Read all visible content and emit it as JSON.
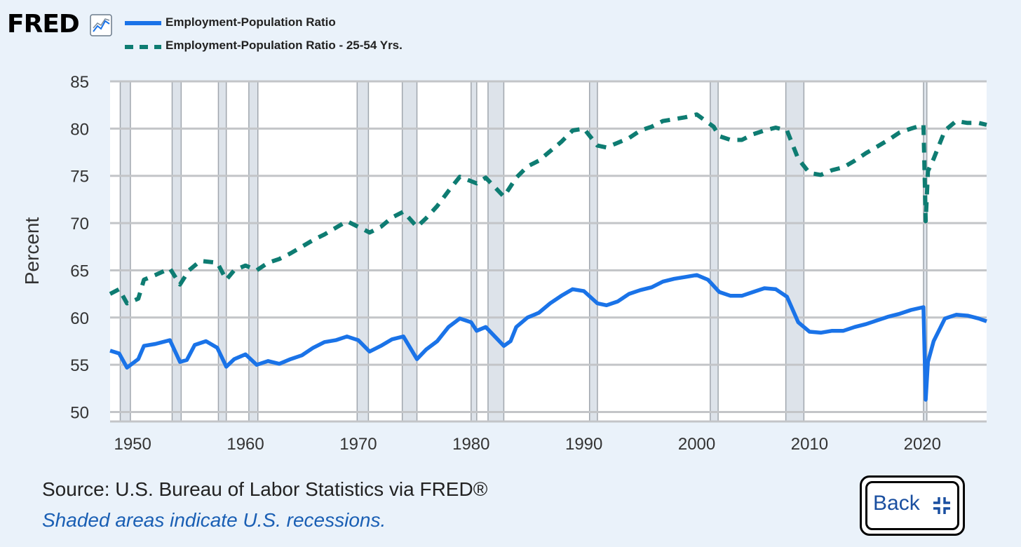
{
  "header": {
    "logo": "FRED",
    "logo_icon": "line-chart-icon"
  },
  "legend": [
    {
      "label": "Employment-Population Ratio",
      "style": "solid",
      "color": "#1a73e8"
    },
    {
      "label": "Employment-Population Ratio - 25-54 Yrs.",
      "style": "dashed",
      "color": "#0e7c72"
    }
  ],
  "footer": {
    "source": "Source: U.S. Bureau of Labor Statistics via FRED®",
    "note": "Shaded areas indicate U.S. recessions."
  },
  "back_button": {
    "label": "Back",
    "icon": "collapse-icon"
  },
  "chart_data": {
    "type": "line",
    "ylabel": "Percent",
    "xlim": [
      1948.0,
      2025.7
    ],
    "ylim": [
      49,
      85
    ],
    "y_ticks": [
      50,
      55,
      60,
      65,
      70,
      75,
      80,
      85
    ],
    "x_ticks": [
      1950,
      1960,
      1970,
      1980,
      1990,
      2000,
      2010,
      2020
    ],
    "grid": true,
    "recessions": [
      [
        1948.9,
        1949.8
      ],
      [
        1953.5,
        1954.3
      ],
      [
        1957.6,
        1958.3
      ],
      [
        1960.3,
        1961.1
      ],
      [
        1969.9,
        1970.9
      ],
      [
        1973.9,
        1975.2
      ],
      [
        1980.0,
        1980.5
      ],
      [
        1981.5,
        1982.9
      ],
      [
        1990.5,
        1991.2
      ],
      [
        2001.2,
        2001.9
      ],
      [
        2007.9,
        2009.5
      ],
      [
        2020.1,
        2020.4
      ]
    ],
    "series": [
      {
        "name": "Employment-Population Ratio",
        "color": "#1a73e8",
        "style": "solid",
        "points": [
          [
            1948,
            56.5
          ],
          [
            1948.8,
            56.2
          ],
          [
            1949.5,
            54.7
          ],
          [
            1950.5,
            55.6
          ],
          [
            1951,
            57.0
          ],
          [
            1952,
            57.2
          ],
          [
            1953.3,
            57.6
          ],
          [
            1954.2,
            55.3
          ],
          [
            1954.8,
            55.5
          ],
          [
            1955.5,
            57.1
          ],
          [
            1956.5,
            57.5
          ],
          [
            1957.5,
            56.8
          ],
          [
            1958.3,
            54.8
          ],
          [
            1959,
            55.6
          ],
          [
            1960,
            56.1
          ],
          [
            1961,
            55.0
          ],
          [
            1962,
            55.4
          ],
          [
            1963,
            55.1
          ],
          [
            1964,
            55.6
          ],
          [
            1965,
            56.0
          ],
          [
            1966,
            56.8
          ],
          [
            1967,
            57.4
          ],
          [
            1968,
            57.6
          ],
          [
            1969,
            58.0
          ],
          [
            1970,
            57.6
          ],
          [
            1971,
            56.4
          ],
          [
            1972,
            57.0
          ],
          [
            1973,
            57.7
          ],
          [
            1974,
            58.0
          ],
          [
            1975.2,
            55.6
          ],
          [
            1976,
            56.6
          ],
          [
            1977,
            57.5
          ],
          [
            1978,
            59.0
          ],
          [
            1979,
            59.9
          ],
          [
            1980,
            59.5
          ],
          [
            1980.5,
            58.6
          ],
          [
            1981.3,
            59.0
          ],
          [
            1982.9,
            57.0
          ],
          [
            1983.5,
            57.5
          ],
          [
            1984,
            59.0
          ],
          [
            1985,
            60.0
          ],
          [
            1986,
            60.5
          ],
          [
            1987,
            61.5
          ],
          [
            1988,
            62.3
          ],
          [
            1989,
            63.0
          ],
          [
            1990,
            62.8
          ],
          [
            1991.2,
            61.5
          ],
          [
            1992,
            61.3
          ],
          [
            1993,
            61.7
          ],
          [
            1994,
            62.5
          ],
          [
            1995,
            62.9
          ],
          [
            1996,
            63.2
          ],
          [
            1997,
            63.8
          ],
          [
            1998,
            64.1
          ],
          [
            1999,
            64.3
          ],
          [
            2000,
            64.5
          ],
          [
            2001,
            64.0
          ],
          [
            2002,
            62.7
          ],
          [
            2003,
            62.3
          ],
          [
            2004,
            62.3
          ],
          [
            2005,
            62.7
          ],
          [
            2006,
            63.1
          ],
          [
            2007,
            63.0
          ],
          [
            2008,
            62.2
          ],
          [
            2009,
            59.5
          ],
          [
            2010,
            58.5
          ],
          [
            2011,
            58.4
          ],
          [
            2012,
            58.6
          ],
          [
            2013,
            58.6
          ],
          [
            2014,
            59.0
          ],
          [
            2015,
            59.3
          ],
          [
            2016,
            59.7
          ],
          [
            2017,
            60.1
          ],
          [
            2018,
            60.4
          ],
          [
            2019,
            60.8
          ],
          [
            2020.1,
            61.1
          ],
          [
            2020.3,
            51.3
          ],
          [
            2020.5,
            55.3
          ],
          [
            2021,
            57.5
          ],
          [
            2022,
            59.9
          ],
          [
            2023,
            60.3
          ],
          [
            2024,
            60.2
          ],
          [
            2025,
            59.9
          ],
          [
            2025.7,
            59.6
          ]
        ]
      },
      {
        "name": "Employment-Population Ratio - 25-54 Yrs.",
        "color": "#0e7c72",
        "style": "dashed",
        "points": [
          [
            1948,
            62.5
          ],
          [
            1948.8,
            63.0
          ],
          [
            1949.5,
            61.5
          ],
          [
            1950.5,
            62.0
          ],
          [
            1951,
            64.0
          ],
          [
            1952,
            64.5
          ],
          [
            1953.3,
            65.2
          ],
          [
            1954.2,
            63.5
          ],
          [
            1955,
            65.0
          ],
          [
            1956,
            66.0
          ],
          [
            1957.5,
            65.8
          ],
          [
            1958.3,
            64.0
          ],
          [
            1959,
            65.0
          ],
          [
            1960,
            65.5
          ],
          [
            1961,
            65.0
          ],
          [
            1962,
            65.8
          ],
          [
            1963,
            66.2
          ],
          [
            1964,
            66.8
          ],
          [
            1965,
            67.5
          ],
          [
            1966,
            68.2
          ],
          [
            1967,
            68.8
          ],
          [
            1968,
            69.5
          ],
          [
            1969,
            70.2
          ],
          [
            1970.5,
            69.3
          ],
          [
            1971,
            69.0
          ],
          [
            1972,
            69.6
          ],
          [
            1973,
            70.6
          ],
          [
            1974,
            71.2
          ],
          [
            1975.2,
            69.6
          ],
          [
            1976,
            70.5
          ],
          [
            1977,
            71.8
          ],
          [
            1978,
            73.4
          ],
          [
            1979,
            74.9
          ],
          [
            1980.5,
            74.2
          ],
          [
            1981.3,
            74.8
          ],
          [
            1982.9,
            72.8
          ],
          [
            1984,
            74.8
          ],
          [
            1985,
            76.0
          ],
          [
            1986,
            76.6
          ],
          [
            1987,
            77.6
          ],
          [
            1988,
            78.6
          ],
          [
            1989,
            79.8
          ],
          [
            1990,
            80.0
          ],
          [
            1991.2,
            78.2
          ],
          [
            1992,
            78.0
          ],
          [
            1993,
            78.5
          ],
          [
            1994,
            79.0
          ],
          [
            1995,
            79.8
          ],
          [
            1996,
            80.2
          ],
          [
            1997,
            80.8
          ],
          [
            1998,
            81.0
          ],
          [
            1999,
            81.2
          ],
          [
            2000,
            81.5
          ],
          [
            2001.5,
            80.2
          ],
          [
            2002,
            79.2
          ],
          [
            2003,
            78.8
          ],
          [
            2004,
            78.8
          ],
          [
            2005,
            79.4
          ],
          [
            2006,
            79.8
          ],
          [
            2007,
            80.1
          ],
          [
            2008,
            79.8
          ],
          [
            2009,
            76.8
          ],
          [
            2010,
            75.3
          ],
          [
            2011,
            75.1
          ],
          [
            2012,
            75.6
          ],
          [
            2013,
            75.9
          ],
          [
            2014,
            76.6
          ],
          [
            2015,
            77.4
          ],
          [
            2016,
            78.1
          ],
          [
            2017,
            78.8
          ],
          [
            2018,
            79.6
          ],
          [
            2019,
            80.0
          ],
          [
            2020.1,
            80.4
          ],
          [
            2020.3,
            70.2
          ],
          [
            2020.5,
            75.5
          ],
          [
            2021,
            76.8
          ],
          [
            2022,
            79.8
          ],
          [
            2023,
            80.8
          ],
          [
            2024,
            80.6
          ],
          [
            2025,
            80.6
          ],
          [
            2025.7,
            80.4
          ]
        ]
      }
    ]
  }
}
